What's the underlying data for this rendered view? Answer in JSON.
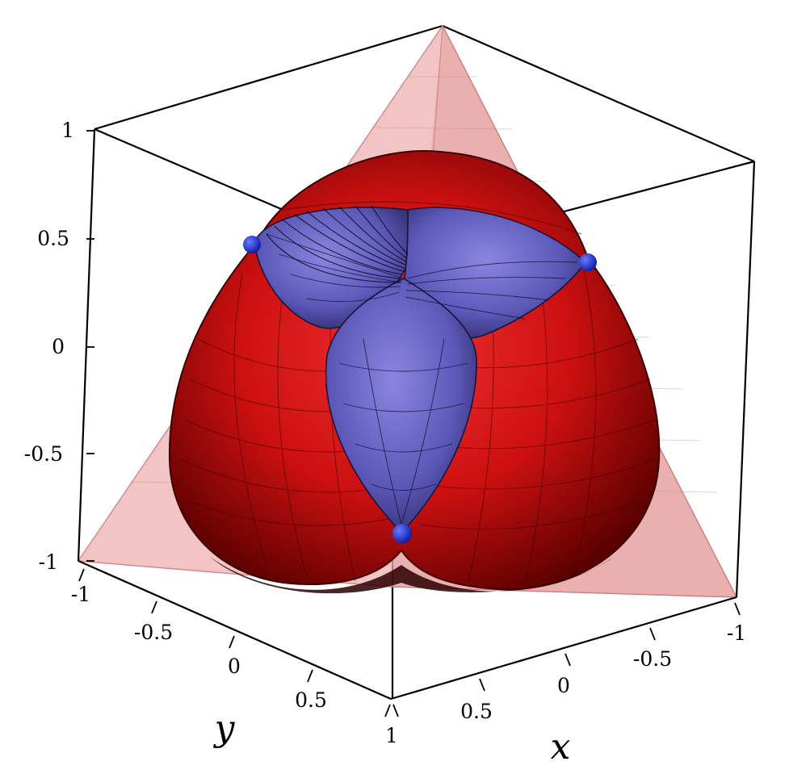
{
  "figure": {
    "axes": {
      "z": {
        "tick_labels": [
          "1",
          "0.5",
          "0",
          "-0.5",
          "-1"
        ]
      },
      "y": {
        "label": "y",
        "tick_labels": [
          "-1",
          "-0.5",
          "0",
          "0.5",
          "1"
        ]
      },
      "x": {
        "label": "x",
        "tick_labels": [
          "1",
          "0.5",
          "0",
          "-0.5",
          "-1"
        ]
      }
    },
    "surfaces": [
      {
        "name": "outer-tetrahedral-cone",
        "color": "#e8a3a3"
      },
      {
        "name": "red-rounded-surface",
        "color": "#d10f0f"
      },
      {
        "name": "blue-three-lobe-surface",
        "color": "#5a56b8"
      }
    ],
    "marker_points": {
      "count": 3,
      "color": "#1530e0"
    }
  }
}
